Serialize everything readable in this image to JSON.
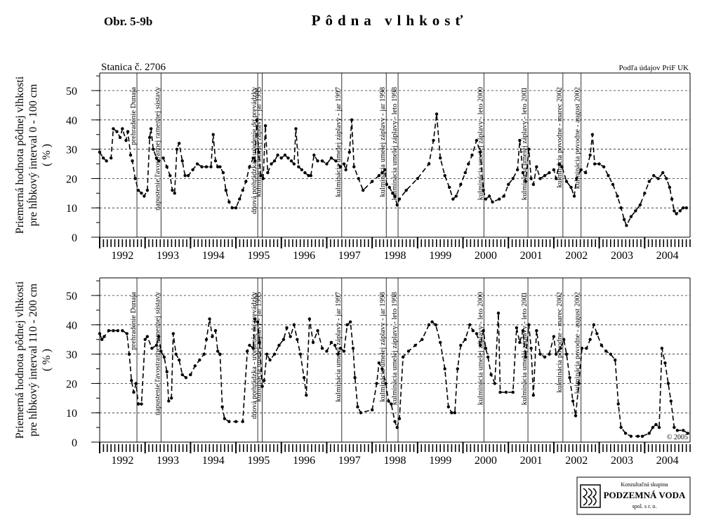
{
  "figure_label": "Obr. 5-9b",
  "title": "Pôdna vlhkosť",
  "logo": {
    "line1": "Konzultačná skupina",
    "line2": "PODZEMNÁ VODA",
    "line3": "spol. s r. o."
  },
  "chart_data": [
    {
      "type": "line",
      "station": "Stanica č. 2706",
      "source": "Podľa údajov PriF UK",
      "ylabel": [
        "Priemerná hodnota pôdnej vlhkosti",
        "pre hĺbkový interval 0 - 100 cm",
        "( % )"
      ],
      "xlim": [
        1992,
        2005
      ],
      "xticks": [
        1992,
        1993,
        1994,
        1995,
        1996,
        1997,
        1998,
        1999,
        2000,
        2001,
        2002,
        2003,
        2004
      ],
      "ylim": [
        0,
        56
      ],
      "yticks": [
        0,
        10,
        20,
        30,
        40,
        50
      ],
      "grid": true,
      "events": [
        {
          "x": 1992.82,
          "label": "prehradenie Dunaja"
        },
        {
          "x": 1993.35,
          "label": "napustenie ľavostrannej ramennej sústavy"
        },
        {
          "x": 1995.48,
          "label": "dnová prehrádzka - uvedenie do prevádzky"
        },
        {
          "x": 1995.58,
          "label": "kulminácia umelej záplavy - jar 1995"
        },
        {
          "x": 1997.33,
          "label": "kulminácia umelej záplavy - jar 1997"
        },
        {
          "x": 1998.31,
          "label": "kulminácia umelej záplavy - jar 1998"
        },
        {
          "x": 1998.57,
          "label": "kulminácia umelej záplavy - leto 1998"
        },
        {
          "x": 2000.46,
          "label": "kulminácia umelej záplavy - leto 2000"
        },
        {
          "x": 2001.43,
          "label": "kulminácia umelej záplavy - leto 2001"
        },
        {
          "x": 2002.2,
          "label": "kulminácia povodne - marec 2002"
        },
        {
          "x": 2002.6,
          "label": "kulminácia povodne - august 2002"
        }
      ],
      "x": [
        1992.0,
        1992.08,
        1992.15,
        1992.25,
        1992.3,
        1992.38,
        1992.45,
        1992.5,
        1992.58,
        1992.62,
        1992.68,
        1992.72,
        1992.78,
        1992.85,
        1992.92,
        1992.98,
        1993.05,
        1993.1,
        1993.13,
        1993.18,
        1993.25,
        1993.3,
        1993.4,
        1993.48,
        1993.55,
        1993.6,
        1993.65,
        1993.7,
        1993.75,
        1993.82,
        1993.88,
        1993.95,
        1994.05,
        1994.15,
        1994.25,
        1994.35,
        1994.45,
        1994.5,
        1994.55,
        1994.6,
        1994.65,
        1994.72,
        1994.78,
        1994.85,
        1994.92,
        1995.0,
        1995.08,
        1995.15,
        1995.22,
        1995.3,
        1995.38,
        1995.42,
        1995.46,
        1995.5,
        1995.55,
        1995.6,
        1995.65,
        1995.7,
        1995.78,
        1995.85,
        1995.92,
        1996.0,
        1996.08,
        1996.15,
        1996.22,
        1996.28,
        1996.32,
        1996.38,
        1996.45,
        1996.52,
        1996.6,
        1996.65,
        1996.72,
        1996.8,
        1996.9,
        1997.0,
        1997.1,
        1997.2,
        1997.3,
        1997.38,
        1997.42,
        1997.5,
        1997.55,
        1997.6,
        1997.7,
        1997.8,
        1998.0,
        1998.15,
        1998.22,
        1998.28,
        1998.32,
        1998.38,
        1998.45,
        1998.5,
        1998.55,
        1998.6,
        1998.75,
        1999.0,
        1999.25,
        1999.35,
        1999.42,
        1999.5,
        1999.6,
        1999.7,
        1999.78,
        1999.85,
        1999.95,
        2000.05,
        2000.12,
        2000.2,
        2000.3,
        2000.38,
        2000.45,
        2000.5,
        2000.58,
        2000.65,
        2000.8,
        2000.9,
        2001.0,
        2001.1,
        2001.2,
        2001.25,
        2001.32,
        2001.38,
        2001.45,
        2001.5,
        2001.55,
        2001.62,
        2001.7,
        2001.8,
        2001.9,
        2002.0,
        2002.05,
        2002.12,
        2002.18,
        2002.28,
        2002.38,
        2002.45,
        2002.5,
        2002.6,
        2002.7,
        2002.8,
        2002.85,
        2002.9,
        2003.0,
        2003.1,
        2003.2,
        2003.3,
        2003.4,
        2003.48,
        2003.55,
        2003.6,
        2003.7,
        2003.8,
        2003.9,
        2004.0,
        2004.1,
        2004.2,
        2004.3,
        2004.4,
        2004.48,
        2004.55,
        2004.6,
        2004.65,
        2004.7,
        2004.78,
        2004.85,
        2004.92
      ],
      "series": [
        {
          "color": "#000000",
          "values": [
            29,
            27,
            26,
            27,
            37,
            36,
            34,
            37,
            33,
            36,
            28,
            26,
            20,
            16,
            15,
            14,
            16,
            34,
            37,
            30,
            27,
            26,
            27,
            24,
            21,
            16,
            15,
            30,
            32,
            26,
            21,
            21,
            23,
            25,
            24,
            24,
            24,
            35,
            26,
            24,
            24,
            22,
            16,
            12,
            10,
            10,
            13,
            16,
            19,
            24,
            27,
            26,
            40,
            29,
            21,
            20,
            38,
            22,
            25,
            26,
            28,
            27,
            28,
            27,
            26,
            25,
            37,
            24,
            23,
            22,
            21,
            21,
            28,
            26,
            26,
            25,
            27,
            26,
            24,
            25,
            23,
            29,
            40,
            24,
            20,
            16,
            19,
            21,
            22,
            23,
            18,
            17,
            15,
            14,
            11,
            13,
            16,
            20,
            25,
            33,
            42,
            27,
            21,
            17,
            13,
            14,
            18,
            22,
            25,
            28,
            33,
            29,
            16,
            13,
            14,
            12,
            13,
            14,
            18,
            20,
            23,
            33,
            22,
            19,
            30,
            20,
            18,
            24,
            20,
            21,
            22,
            23,
            20,
            25,
            24,
            19,
            17,
            14,
            20,
            23,
            22,
            28,
            35,
            25,
            25,
            24,
            21,
            18,
            14,
            10,
            6,
            4,
            7,
            9,
            11,
            15,
            19,
            21,
            20,
            22,
            20,
            17,
            13,
            9,
            8,
            9,
            10,
            10
          ]
        }
      ]
    },
    {
      "type": "line",
      "copyright": "© 2005",
      "ylabel": [
        "Priemerná hodnota pôdnej vlhkosti",
        "pre hĺbkový interval 110 - 200 cm",
        "( % )"
      ],
      "xlim": [
        1992,
        2005
      ],
      "xticks": [
        1992,
        1993,
        1994,
        1995,
        1996,
        1997,
        1998,
        1999,
        2000,
        2001,
        2002,
        2003,
        2004
      ],
      "ylim": [
        0,
        56
      ],
      "yticks": [
        0,
        10,
        20,
        30,
        40,
        50
      ],
      "grid": true,
      "events": [
        {
          "x": 1992.82,
          "label": "prehradenie Dunaja"
        },
        {
          "x": 1993.35,
          "label": "napustenie ľavostrannej ramennej sústavy"
        },
        {
          "x": 1995.48,
          "label": "dnová prehrádzka - uvedenie do prevádzky"
        },
        {
          "x": 1995.58,
          "label": "kulminácia umelej záplavy - jar 1995"
        },
        {
          "x": 1997.33,
          "label": "kulminácia umelej záplavy - jar 1997"
        },
        {
          "x": 1998.31,
          "label": "kulminácia umelej záplavy - jar 1998"
        },
        {
          "x": 1998.57,
          "label": "kulminácia umelej záplavy - leto 1998"
        },
        {
          "x": 2000.46,
          "label": "kulminácia umelej záplavy - leto 2000"
        },
        {
          "x": 2001.43,
          "label": "kulminácia umelej záplavy - leto 2001"
        },
        {
          "x": 2002.2,
          "label": "kulminácia povodne - marec 2002"
        },
        {
          "x": 2002.6,
          "label": "kulminácia povodne - august 2002"
        }
      ],
      "x": [
        1992.0,
        1992.05,
        1992.1,
        1992.2,
        1992.3,
        1992.4,
        1992.5,
        1992.6,
        1992.65,
        1992.7,
        1992.75,
        1992.8,
        1992.85,
        1992.92,
        1993.0,
        1993.05,
        1993.15,
        1993.25,
        1993.3,
        1993.35,
        1993.42,
        1993.48,
        1993.52,
        1993.58,
        1993.62,
        1993.68,
        1993.75,
        1993.82,
        1993.9,
        1994.0,
        1994.1,
        1994.2,
        1994.3,
        1994.35,
        1994.42,
        1994.48,
        1994.55,
        1994.6,
        1994.65,
        1994.7,
        1994.75,
        1994.85,
        1995.0,
        1995.15,
        1995.25,
        1995.3,
        1995.38,
        1995.42,
        1995.48,
        1995.52,
        1995.58,
        1995.62,
        1995.68,
        1995.75,
        1995.85,
        1995.95,
        1996.05,
        1996.12,
        1996.2,
        1996.28,
        1996.35,
        1996.42,
        1996.5,
        1996.55,
        1996.62,
        1996.7,
        1996.8,
        1996.9,
        1997.0,
        1997.1,
        1997.18,
        1997.25,
        1997.3,
        1997.38,
        1997.45,
        1997.52,
        1997.58,
        1997.62,
        1997.68,
        1997.75,
        1998.0,
        1998.1,
        1998.15,
        1998.22,
        1998.3,
        1998.36,
        1998.42,
        1998.5,
        1998.55,
        1998.6,
        1998.68,
        1998.8,
        1998.95,
        1999.1,
        1999.25,
        1999.32,
        1999.4,
        1999.5,
        1999.6,
        1999.68,
        1999.75,
        1999.82,
        1999.88,
        1999.95,
        2000.05,
        2000.15,
        2000.22,
        2000.3,
        2000.38,
        2000.45,
        2000.5,
        2000.55,
        2000.62,
        2000.7,
        2000.78,
        2000.82,
        2000.95,
        2001.1,
        2001.18,
        2001.25,
        2001.32,
        2001.38,
        2001.45,
        2001.5,
        2001.55,
        2001.62,
        2001.7,
        2001.8,
        2001.9,
        2002.0,
        2002.05,
        2002.15,
        2002.22,
        2002.28,
        2002.35,
        2002.42,
        2002.48,
        2002.55,
        2002.62,
        2002.72,
        2002.8,
        2002.88,
        2002.95,
        2003.05,
        2003.15,
        2003.25,
        2003.35,
        2003.42,
        2003.48,
        2003.58,
        2003.7,
        2003.85,
        2003.95,
        2004.1,
        2004.18,
        2004.25,
        2004.32,
        2004.38,
        2004.45,
        2004.52,
        2004.58,
        2004.65,
        2004.72,
        2004.85,
        2004.95
      ],
      "series": [
        {
          "color": "#000000",
          "values": [
            37,
            35,
            36,
            38,
            38,
            38,
            38,
            37,
            30,
            21,
            17,
            20,
            13,
            13,
            35,
            36,
            32,
            33,
            36,
            31,
            29,
            24,
            14,
            15,
            37,
            30,
            28,
            23,
            22,
            23,
            26,
            28,
            30,
            35,
            42,
            36,
            38,
            31,
            30,
            12,
            8,
            7,
            7,
            7,
            31,
            33,
            32,
            42,
            41,
            34,
            19,
            21,
            30,
            28,
            30,
            33,
            35,
            39,
            36,
            40,
            35,
            30,
            22,
            16,
            42,
            34,
            38,
            32,
            31,
            34,
            33,
            30,
            32,
            31,
            40,
            41,
            32,
            22,
            12,
            10,
            11,
            20,
            27,
            25,
            20,
            14,
            13,
            7,
            5,
            8,
            29,
            31,
            33,
            35,
            40,
            41,
            40,
            34,
            25,
            12,
            10,
            10,
            25,
            33,
            35,
            40,
            38,
            37,
            33,
            38,
            32,
            29,
            23,
            20,
            44,
            17,
            17,
            17,
            39,
            34,
            38,
            29,
            40,
            32,
            16,
            38,
            30,
            29,
            30,
            36,
            30,
            32,
            35,
            30,
            22,
            14,
            9,
            20,
            32,
            32,
            35,
            40,
            37,
            33,
            31,
            30,
            28,
            13,
            5,
            3,
            2,
            2,
            2,
            3,
            5,
            6,
            5,
            32,
            27,
            20,
            14,
            5,
            4,
            4,
            3
          ]
        }
      ]
    }
  ]
}
